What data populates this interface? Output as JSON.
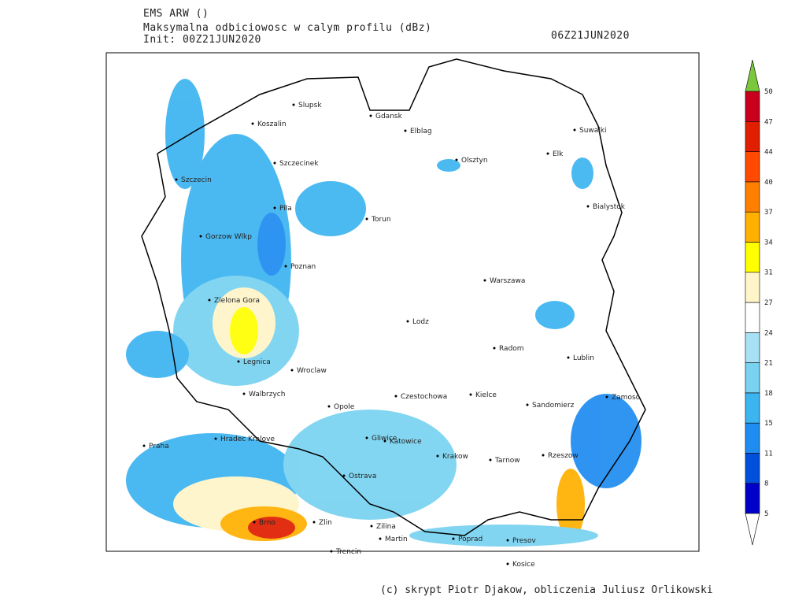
{
  "header": {
    "model": "EMS ARW ()",
    "field": "Maksymalna odbiciowosc w calym profilu (dBz)",
    "init": "Init: 00Z21JUN2020",
    "valid": "06Z21JUN2020"
  },
  "colorbar": {
    "levels": [
      5,
      8,
      11,
      15,
      18,
      21,
      24,
      27,
      31,
      34,
      37,
      40,
      44,
      47,
      50
    ],
    "colors": [
      "#0000c8",
      "#0050dc",
      "#1e8cf0",
      "#3cb4f0",
      "#78d2f0",
      "#a8e0f4",
      "#ffffff",
      "#fff5c8",
      "#ffff00",
      "#ffb000",
      "#ff8000",
      "#ff4a00",
      "#e01e00",
      "#c8001e"
    ],
    "over_color": "#7cc83c",
    "under_color": "#ffffff"
  },
  "cities": [
    "Slupsk",
    "Gdansk",
    "Koszalin",
    "Elblag",
    "Suwalki",
    "Szczecinek",
    "Olsztyn",
    "Elk",
    "Szczecin",
    "Pila",
    "Torun",
    "Bialystok",
    "Gorzow Wlkp",
    "Poznan",
    "Warszawa",
    "Zielona Gora",
    "Lodz",
    "Radom",
    "Lublin",
    "Legnica",
    "Wroclaw",
    "Walbrzych",
    "Opole",
    "Czestochowa",
    "Kielce",
    "Sandomierz",
    "Zamosc",
    "Praha",
    "Hradec Kralove",
    "Gliwice",
    "Katowice",
    "Krakow",
    "Tarnow",
    "Rzeszow",
    "Ostrava",
    "Brno",
    "Zlin",
    "Zilina",
    "Martin",
    "Poprad",
    "Presov",
    "Trencin",
    "Kosice"
  ],
  "credit": "(c) skrypt Piotr Djakow, obliczenia Juliusz Orlikowski"
}
